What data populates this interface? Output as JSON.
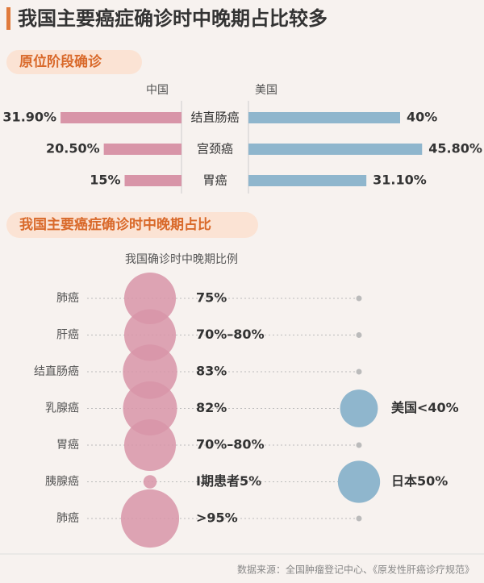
{
  "title": "我国主要癌症确诊时中晚期占比较多",
  "source": "数据来源：全国肿瘤登记中心、《原发性肝癌诊疗规范》",
  "chart_data": [
    {
      "type": "butterfly",
      "title": "原位阶段确诊",
      "categories": [
        "结直肠癌",
        "宫颈癌",
        "胃癌"
      ],
      "series": [
        {
          "name": "中国",
          "color": "#d895a8",
          "values": [
            31.9,
            20.5,
            15
          ],
          "value_labels": [
            "31.90%",
            "20.50%",
            "15%"
          ]
        },
        {
          "name": "美国",
          "color": "#8fb6cd",
          "values": [
            40,
            45.8,
            31.1
          ],
          "value_labels": [
            "40%",
            "45.80%",
            "31.10%"
          ]
        }
      ]
    },
    {
      "type": "bubble",
      "title": "我国主要癌症确诊时中晚期占比",
      "subtitle": "我国确诊时中晚期比例",
      "categories": [
        "肺癌",
        "肝癌",
        "结直肠癌",
        "乳腺癌",
        "胃癌",
        "胰腺癌",
        "肺癌"
      ],
      "series": [
        {
          "color": "#d895a8",
          "values": [
            75,
            75,
            83,
            82,
            75,
            5,
            95
          ],
          "value_labels": [
            "75%",
            "70%–80%",
            "83%",
            "82%",
            "70%–80%",
            "Ⅰ期患者5%",
            ">95%"
          ]
        },
        {
          "color": "#8fb6cd",
          "values": [
            null,
            null,
            null,
            40,
            null,
            50,
            null
          ],
          "value_labels": [
            null,
            null,
            null,
            "美国<40%",
            null,
            "日本50%",
            null
          ]
        }
      ]
    }
  ]
}
